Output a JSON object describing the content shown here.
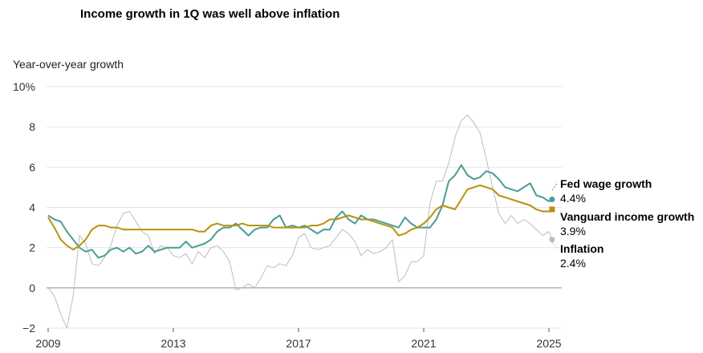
{
  "title": "Income growth in 1Q was well above inflation",
  "y_axis_title": "Year-over-year growth",
  "chart_data": {
    "type": "line",
    "title": "Income growth in 1Q was well above inflation",
    "ylabel": "Year-over-year growth",
    "ylim": [
      -2,
      10
    ],
    "xlim": [
      2009,
      2025.25
    ],
    "y_ticks": [
      "10%",
      "8",
      "6",
      "4",
      "2",
      "0",
      "−2"
    ],
    "y_tick_values": [
      10,
      8,
      6,
      4,
      2,
      0,
      -2
    ],
    "x_ticks": [
      "2009",
      "2013",
      "2017",
      "2021",
      "2025"
    ],
    "x_tick_values": [
      2009,
      2013,
      2017,
      2021,
      2025
    ],
    "grid": true,
    "colors": {
      "fed": "#4a9d94",
      "vanguard": "#b8920e",
      "inflation": "#bdbdbd",
      "zero": "#999999",
      "grid": "#e6e6e6"
    },
    "series": [
      {
        "key": "fed",
        "name": "Fed wage growth",
        "end_value": "4.4%",
        "x": [
          2009.0,
          2009.2,
          2009.4,
          2009.6,
          2009.8,
          2010.0,
          2010.2,
          2010.4,
          2010.6,
          2010.8,
          2011.0,
          2011.2,
          2011.4,
          2011.6,
          2011.8,
          2012.0,
          2012.2,
          2012.4,
          2012.6,
          2012.8,
          2013.0,
          2013.2,
          2013.4,
          2013.6,
          2013.8,
          2014.0,
          2014.2,
          2014.4,
          2014.6,
          2014.8,
          2015.0,
          2015.2,
          2015.4,
          2015.6,
          2015.8,
          2016.0,
          2016.2,
          2016.4,
          2016.6,
          2016.8,
          2017.0,
          2017.2,
          2017.4,
          2017.6,
          2017.8,
          2018.0,
          2018.2,
          2018.4,
          2018.6,
          2018.8,
          2019.0,
          2019.2,
          2019.4,
          2019.6,
          2019.8,
          2020.0,
          2020.2,
          2020.4,
          2020.6,
          2020.8,
          2021.0,
          2021.2,
          2021.4,
          2021.6,
          2021.8,
          2022.0,
          2022.2,
          2022.4,
          2022.6,
          2022.8,
          2023.0,
          2023.2,
          2023.4,
          2023.6,
          2023.8,
          2024.0,
          2024.2,
          2024.4,
          2024.6,
          2024.8,
          2025.0,
          2025.1
        ],
        "values": [
          3.6,
          3.4,
          3.3,
          2.8,
          2.4,
          2.0,
          1.8,
          1.9,
          1.5,
          1.6,
          1.9,
          2.0,
          1.8,
          2.0,
          1.7,
          1.8,
          2.1,
          1.8,
          1.9,
          2.0,
          2.0,
          2.0,
          2.3,
          2.0,
          2.1,
          2.2,
          2.4,
          2.8,
          3.0,
          3.0,
          3.2,
          2.9,
          2.6,
          2.9,
          3.0,
          3.0,
          3.4,
          3.6,
          3.0,
          3.1,
          3.0,
          3.1,
          2.9,
          2.7,
          2.9,
          2.9,
          3.5,
          3.8,
          3.4,
          3.2,
          3.6,
          3.4,
          3.4,
          3.3,
          3.2,
          3.1,
          3.0,
          3.5,
          3.2,
          3.0,
          3.0,
          3.0,
          3.4,
          4.1,
          5.3,
          5.6,
          6.1,
          5.6,
          5.4,
          5.5,
          5.8,
          5.7,
          5.4,
          5.0,
          4.9,
          4.8,
          5.0,
          5.2,
          4.6,
          4.5,
          4.3,
          4.4
        ]
      },
      {
        "key": "vanguard",
        "name": "Vanguard income growth",
        "end_value": "3.9%",
        "x": [
          2009.0,
          2009.2,
          2009.4,
          2009.6,
          2009.8,
          2010.0,
          2010.2,
          2010.4,
          2010.6,
          2010.8,
          2011.0,
          2011.2,
          2011.4,
          2011.6,
          2011.8,
          2012.0,
          2012.2,
          2012.4,
          2012.6,
          2012.8,
          2013.0,
          2013.2,
          2013.4,
          2013.6,
          2013.8,
          2014.0,
          2014.2,
          2014.4,
          2014.6,
          2014.8,
          2015.0,
          2015.2,
          2015.4,
          2015.6,
          2015.8,
          2016.0,
          2016.2,
          2016.4,
          2016.6,
          2016.8,
          2017.0,
          2017.2,
          2017.4,
          2017.6,
          2017.8,
          2018.0,
          2018.2,
          2018.4,
          2018.6,
          2018.8,
          2019.0,
          2019.2,
          2019.4,
          2019.6,
          2019.8,
          2020.0,
          2020.2,
          2020.4,
          2020.6,
          2020.8,
          2021.0,
          2021.2,
          2021.4,
          2021.6,
          2021.8,
          2022.0,
          2022.2,
          2022.4,
          2022.6,
          2022.8,
          2023.0,
          2023.2,
          2023.4,
          2023.6,
          2023.8,
          2024.0,
          2024.2,
          2024.4,
          2024.6,
          2024.8,
          2025.0,
          2025.1
        ],
        "values": [
          3.5,
          3.0,
          2.4,
          2.1,
          1.9,
          2.1,
          2.4,
          2.9,
          3.1,
          3.1,
          3.0,
          3.0,
          2.9,
          2.9,
          2.9,
          2.9,
          2.9,
          2.9,
          2.9,
          2.9,
          2.9,
          2.9,
          2.9,
          2.9,
          2.8,
          2.8,
          3.1,
          3.2,
          3.1,
          3.1,
          3.1,
          3.2,
          3.1,
          3.1,
          3.1,
          3.1,
          3.0,
          3.0,
          3.0,
          3.0,
          3.0,
          3.0,
          3.1,
          3.1,
          3.2,
          3.4,
          3.4,
          3.5,
          3.6,
          3.5,
          3.4,
          3.4,
          3.3,
          3.2,
          3.1,
          3.0,
          2.6,
          2.7,
          2.9,
          3.0,
          3.2,
          3.5,
          3.9,
          4.1,
          4.0,
          3.9,
          4.4,
          4.9,
          5.0,
          5.1,
          5.0,
          4.9,
          4.6,
          4.5,
          4.4,
          4.3,
          4.2,
          4.1,
          3.9,
          3.8,
          3.8,
          3.9
        ]
      },
      {
        "key": "inflation",
        "name": "Inflation",
        "end_value": "2.4%",
        "x": [
          2009.0,
          2009.2,
          2009.4,
          2009.6,
          2009.8,
          2010.0,
          2010.2,
          2010.4,
          2010.6,
          2010.8,
          2011.0,
          2011.2,
          2011.4,
          2011.6,
          2011.8,
          2012.0,
          2012.2,
          2012.4,
          2012.6,
          2012.8,
          2013.0,
          2013.2,
          2013.4,
          2013.6,
          2013.8,
          2014.0,
          2014.2,
          2014.4,
          2014.6,
          2014.8,
          2015.0,
          2015.2,
          2015.4,
          2015.6,
          2015.8,
          2016.0,
          2016.2,
          2016.4,
          2016.6,
          2016.8,
          2017.0,
          2017.2,
          2017.4,
          2017.6,
          2017.8,
          2018.0,
          2018.2,
          2018.4,
          2018.6,
          2018.8,
          2019.0,
          2019.2,
          2019.4,
          2019.6,
          2019.8,
          2020.0,
          2020.2,
          2020.4,
          2020.6,
          2020.8,
          2021.0,
          2021.2,
          2021.4,
          2021.6,
          2021.8,
          2022.0,
          2022.2,
          2022.4,
          2022.6,
          2022.8,
          2023.0,
          2023.2,
          2023.4,
          2023.6,
          2023.8,
          2024.0,
          2024.2,
          2024.4,
          2024.6,
          2024.8,
          2025.0,
          2025.1
        ],
        "values": [
          0.0,
          -0.4,
          -1.3,
          -2.0,
          -0.4,
          2.6,
          2.2,
          1.2,
          1.1,
          1.5,
          2.1,
          3.1,
          3.7,
          3.8,
          3.3,
          2.8,
          2.6,
          1.7,
          2.1,
          2.0,
          1.6,
          1.5,
          1.7,
          1.2,
          1.8,
          1.5,
          2.0,
          2.1,
          1.8,
          1.3,
          -0.1,
          0.0,
          0.2,
          0.0,
          0.5,
          1.1,
          1.0,
          1.2,
          1.1,
          1.6,
          2.5,
          2.7,
          2.0,
          1.9,
          2.0,
          2.1,
          2.5,
          2.9,
          2.7,
          2.3,
          1.6,
          1.9,
          1.7,
          1.8,
          2.0,
          2.4,
          0.3,
          0.6,
          1.3,
          1.3,
          1.6,
          4.2,
          5.3,
          5.3,
          6.2,
          7.5,
          8.3,
          8.6,
          8.2,
          7.7,
          6.4,
          5.0,
          3.7,
          3.2,
          3.6,
          3.2,
          3.4,
          3.2,
          2.9,
          2.6,
          2.8,
          2.4
        ]
      }
    ],
    "annotations": [
      {
        "series": "fed",
        "label": "Fed wage growth",
        "value": "4.4%"
      },
      {
        "series": "vanguard",
        "label": "Vanguard income growth",
        "value": "3.9%"
      },
      {
        "series": "inflation",
        "label": "Inflation",
        "value": "2.4%"
      }
    ]
  }
}
